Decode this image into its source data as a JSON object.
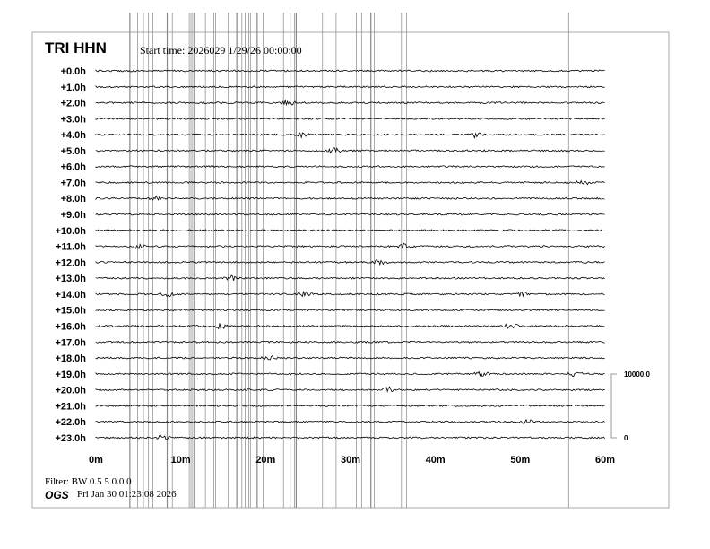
{
  "header": {
    "station": "TRI HHN",
    "start_time": "Start time: 2026029  1/29/26 00:00:00"
  },
  "footer": {
    "filter": "Filter: BW 0.5 5 0.0 0",
    "org": "OGS",
    "generated": "Fri Jan 30 01:23:08 2026"
  },
  "chart_data": {
    "type": "line",
    "row_labels": [
      "+0.0h",
      "+1.0h",
      "+2.0h",
      "+3.0h",
      "+4.0h",
      "+5.0h",
      "+6.0h",
      "+7.0h",
      "+8.0h",
      "+9.0h",
      "+10.0h",
      "+11.0h",
      "+12.0h",
      "+13.0h",
      "+14.0h",
      "+15.0h",
      "+16.0h",
      "+17.0h",
      "+18.0h",
      "+19.0h",
      "+20.0h",
      "+21.0h",
      "+22.0h",
      "+23.0h"
    ],
    "x_ticks": [
      "0m",
      "10m",
      "20m",
      "30m",
      "40m",
      "50m",
      "60m"
    ],
    "xlim": [
      0,
      60
    ],
    "amplitude_scale": {
      "max_label": "10000.0",
      "min_label": "0"
    },
    "events": [
      [
        2,
        22.7
      ],
      [
        4,
        24.2
      ],
      [
        4,
        44.7
      ],
      [
        5,
        28.1
      ],
      [
        7,
        57.4
      ],
      [
        8,
        7.0
      ],
      [
        11,
        4.9
      ],
      [
        11,
        36.4
      ],
      [
        12,
        33.4
      ],
      [
        13,
        16.0
      ],
      [
        14,
        8.4
      ],
      [
        14,
        24.6
      ],
      [
        14,
        50.0
      ],
      [
        16,
        14.7
      ],
      [
        16,
        48.9
      ],
      [
        18,
        20.4
      ],
      [
        19,
        45.4
      ],
      [
        19,
        56.4
      ],
      [
        20,
        34.5
      ],
      [
        22,
        50.7
      ],
      [
        23,
        7.9
      ]
    ],
    "spike_minutes": [
      4.0,
      4.9,
      5.6,
      6.2,
      6.7,
      8.4,
      9.0,
      11.0,
      11.2,
      11.4,
      11.6,
      12.9,
      13.9,
      14.1,
      15.6,
      16.6,
      17.2,
      17.6,
      18.0,
      18.2,
      19.0,
      19.7,
      22.1,
      22.9,
      23.4,
      23.6,
      26.7,
      28.3,
      30.7,
      31.3,
      32.4,
      32.8,
      36.0,
      36.6,
      55.7
    ],
    "colors": {
      "trace": "#000000",
      "spike": "#888888",
      "frame": "#aaaaaa"
    }
  }
}
